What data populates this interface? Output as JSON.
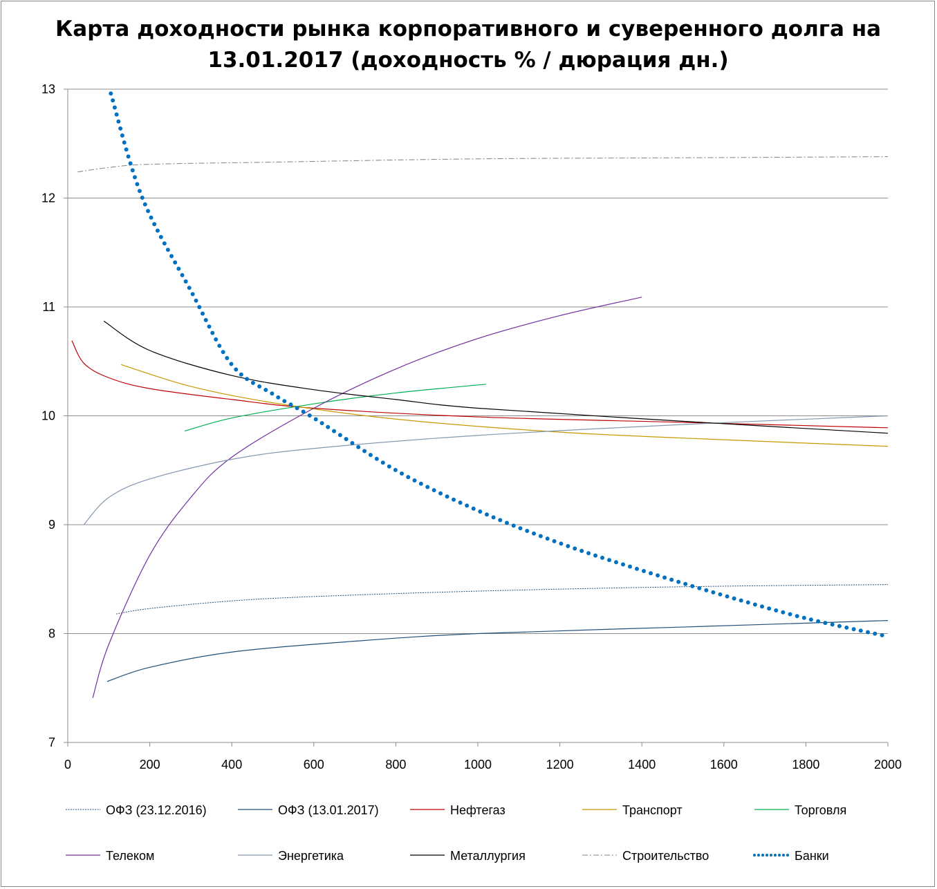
{
  "chart_data": {
    "type": "line",
    "title": [
      "Карта доходности рынка корпоративного и суверенного долга на",
      "13.01.2017 (доходность % / дюрация дн.)"
    ],
    "xlabel": "",
    "ylabel": "",
    "xlim": [
      0,
      2000
    ],
    "ylim": [
      7,
      13
    ],
    "xticks": [
      0,
      200,
      400,
      600,
      800,
      1000,
      1200,
      1400,
      1600,
      1800,
      2000
    ],
    "yticks": [
      7,
      8,
      9,
      10,
      11,
      12,
      13
    ],
    "grid": "horizontal",
    "legend_position": "bottom",
    "series": [
      {
        "name": "ОФЗ (23.12.2016)",
        "color": "#1f4e79",
        "style": "dotted-thin",
        "points": [
          [
            118,
            8.18
          ],
          [
            200,
            8.23
          ],
          [
            400,
            8.3
          ],
          [
            600,
            8.34
          ],
          [
            1000,
            8.39
          ],
          [
            1500,
            8.43
          ],
          [
            2000,
            8.45
          ]
        ]
      },
      {
        "name": "ОФЗ (13.01.2017)",
        "color": "#1f4e79",
        "style": "solid",
        "points": [
          [
            96,
            7.56
          ],
          [
            200,
            7.69
          ],
          [
            400,
            7.83
          ],
          [
            700,
            7.93
          ],
          [
            1000,
            8.0
          ],
          [
            1500,
            8.06
          ],
          [
            2000,
            8.12
          ]
        ]
      },
      {
        "name": "Нефтегаз",
        "color": "#c00000",
        "style": "solid",
        "points": [
          [
            10,
            10.69
          ],
          [
            40,
            10.48
          ],
          [
            100,
            10.35
          ],
          [
            200,
            10.25
          ],
          [
            400,
            10.15
          ],
          [
            600,
            10.07
          ],
          [
            1000,
            9.99
          ],
          [
            1500,
            9.94
          ],
          [
            2000,
            9.89
          ]
        ]
      },
      {
        "name": "Транспорт",
        "color": "#c89800",
        "style": "solid",
        "points": [
          [
            130,
            10.47
          ],
          [
            300,
            10.27
          ],
          [
            500,
            10.12
          ],
          [
            800,
            9.97
          ],
          [
            1200,
            9.85
          ],
          [
            1600,
            9.78
          ],
          [
            2000,
            9.72
          ]
        ]
      },
      {
        "name": "Торговля",
        "color": "#00b050",
        "style": "solid",
        "points": [
          [
            285,
            9.86
          ],
          [
            400,
            9.98
          ],
          [
            600,
            10.11
          ],
          [
            800,
            10.21
          ],
          [
            1020,
            10.29
          ]
        ]
      },
      {
        "name": "Телеком",
        "color": "#7030a0",
        "style": "solid",
        "points": [
          [
            61,
            7.41
          ],
          [
            100,
            7.9
          ],
          [
            200,
            8.72
          ],
          [
            300,
            9.25
          ],
          [
            400,
            9.62
          ],
          [
            600,
            10.07
          ],
          [
            800,
            10.43
          ],
          [
            1000,
            10.71
          ],
          [
            1200,
            10.92
          ],
          [
            1400,
            11.09
          ]
        ]
      },
      {
        "name": "Энергетика",
        "color": "#8497b0",
        "style": "solid",
        "points": [
          [
            39,
            9.0
          ],
          [
            100,
            9.25
          ],
          [
            200,
            9.42
          ],
          [
            400,
            9.6
          ],
          [
            600,
            9.7
          ],
          [
            1000,
            9.82
          ],
          [
            1500,
            9.92
          ],
          [
            2000,
            10.0
          ]
        ]
      },
      {
        "name": "Металлургия",
        "color": "#000000",
        "style": "solid",
        "points": [
          [
            88,
            10.87
          ],
          [
            200,
            10.6
          ],
          [
            400,
            10.37
          ],
          [
            600,
            10.24
          ],
          [
            800,
            10.15
          ],
          [
            1000,
            10.07
          ],
          [
            1500,
            9.95
          ],
          [
            2000,
            9.84
          ]
        ]
      },
      {
        "name": "Строительство",
        "color": "#7f7f7f",
        "style": "dashdot",
        "points": [
          [
            24,
            12.24
          ],
          [
            100,
            12.28
          ],
          [
            200,
            12.31
          ],
          [
            500,
            12.33
          ],
          [
            1000,
            12.36
          ],
          [
            1500,
            12.37
          ],
          [
            2000,
            12.38
          ]
        ]
      },
      {
        "name": "Банки",
        "color": "#0070c0",
        "style": "dots",
        "points": [
          [
            105,
            12.96
          ],
          [
            182,
            12.0
          ],
          [
            300,
            11.15
          ],
          [
            400,
            10.47
          ],
          [
            500,
            10.2
          ],
          [
            600,
            9.98
          ],
          [
            800,
            9.5
          ],
          [
            1000,
            9.13
          ],
          [
            1200,
            8.83
          ],
          [
            1400,
            8.58
          ],
          [
            1600,
            8.35
          ],
          [
            1800,
            8.14
          ],
          [
            1992,
            7.98
          ]
        ]
      }
    ]
  }
}
